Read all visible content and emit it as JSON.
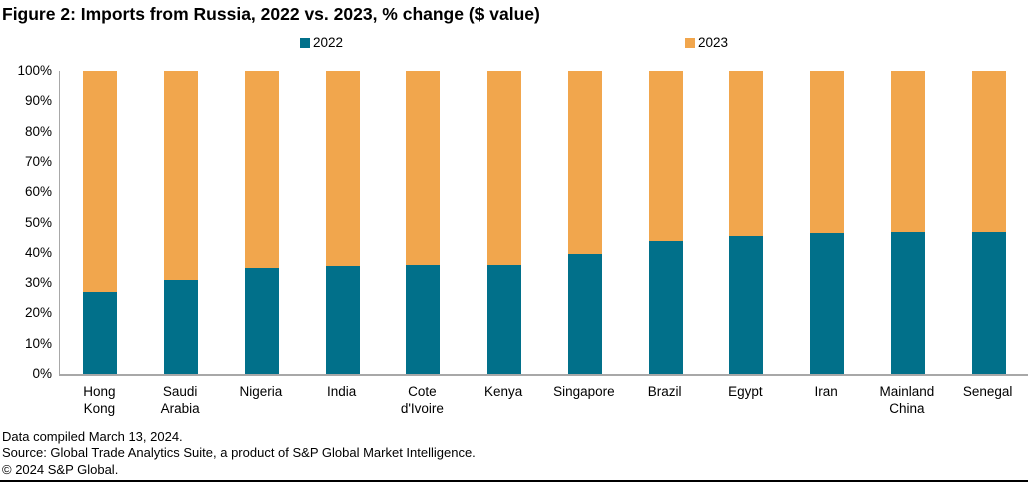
{
  "title": "Figure 2: Imports from Russia, 2022 vs. 2023, % change ($ value)",
  "colors": {
    "series_2022": "#01708a",
    "series_2023": "#f1a64d",
    "axis_line": "#a8a8a8",
    "text": "#000000"
  },
  "chart_data": {
    "type": "bar",
    "stacked": true,
    "title": "Figure 2: Imports from Russia, 2022 vs. 2023, % change ($ value)",
    "categories": [
      "Hong\nKong",
      "Saudi\nArabia",
      "Nigeria",
      "India",
      "Cote\nd'Ivoire",
      "Kenya",
      "Singapore",
      "Brazil",
      "Egypt",
      "Iran",
      "Mainland\nChina",
      "Senegal"
    ],
    "series": [
      {
        "name": "2022",
        "color": "#01708a",
        "values": [
          27,
          31,
          35,
          35.5,
          36,
          36,
          39.5,
          44,
          45.5,
          46.5,
          47,
          47
        ]
      },
      {
        "name": "2023",
        "color": "#f1a64d",
        "values": [
          73,
          69,
          65,
          64.5,
          64,
          64,
          60.5,
          56,
          54.5,
          53.5,
          53,
          53
        ]
      }
    ],
    "xlabel": "",
    "ylabel": "",
    "ylim": [
      0,
      100
    ],
    "ytick_labels": [
      "0%",
      "10%",
      "20%",
      "30%",
      "40%",
      "50%",
      "60%",
      "70%",
      "80%",
      "90%",
      "100%"
    ],
    "grid": false,
    "legend_position": "top"
  },
  "footer": {
    "line1": "Data compiled March 13, 2024.",
    "line2": "Source: Global Trade Analytics Suite, a product of S&P Global Market Intelligence.",
    "line3": "© 2024 S&P Global."
  }
}
